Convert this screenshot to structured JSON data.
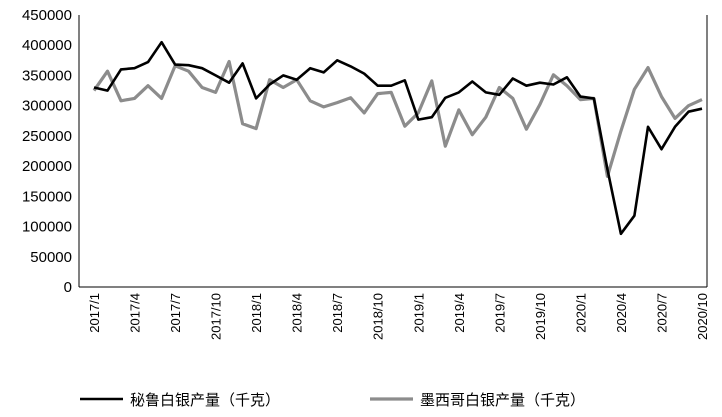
{
  "chart_data": {
    "type": "line",
    "title": "",
    "xlabel": "",
    "ylabel": "",
    "ylim": [
      0,
      450000
    ],
    "yticks": [
      0,
      50000,
      100000,
      150000,
      200000,
      250000,
      300000,
      350000,
      400000,
      450000
    ],
    "x": [
      "2017/1",
      "2017/2",
      "2017/3",
      "2017/4",
      "2017/5",
      "2017/6",
      "2017/7",
      "2017/8",
      "2017/9",
      "2017/10",
      "2017/11",
      "2017/12",
      "2018/1",
      "2018/2",
      "2018/3",
      "2018/4",
      "2018/5",
      "2018/6",
      "2018/7",
      "2018/8",
      "2018/9",
      "2018/10",
      "2018/11",
      "2018/12",
      "2019/1",
      "2019/2",
      "2019/3",
      "2019/4",
      "2019/5",
      "2019/6",
      "2019/7",
      "2019/8",
      "2019/9",
      "2019/10",
      "2019/11",
      "2019/12",
      "2020/1",
      "2020/2",
      "2020/3",
      "2020/4",
      "2020/5",
      "2020/6",
      "2020/7",
      "2020/8",
      "2020/9",
      "2020/10"
    ],
    "xtick_labels": [
      "2017/1",
      "2017/4",
      "2017/7",
      "2017/10",
      "2018/1",
      "2018/4",
      "2018/7",
      "2018/10",
      "2019/1",
      "2019/4",
      "2019/7",
      "2019/10",
      "2020/1",
      "2020/4",
      "2020/7",
      "2020/10"
    ],
    "grid": false,
    "legend_position": "bottom",
    "series": [
      {
        "name": "秘鲁白银产量（千克）",
        "color": "#000000",
        "values": [
          330000,
          325000,
          360000,
          362000,
          372000,
          405000,
          368000,
          367000,
          362000,
          350000,
          338000,
          370000,
          312000,
          335000,
          350000,
          343000,
          362000,
          355000,
          375000,
          365000,
          353000,
          333000,
          333000,
          342000,
          277000,
          281000,
          313000,
          322000,
          340000,
          322000,
          318000,
          345000,
          333000,
          338000,
          335000,
          347000,
          315000,
          312000,
          195000,
          88000,
          118000,
          265000,
          228000,
          265000,
          290000,
          295000
        ]
      },
      {
        "name": "墨西哥白银产量（千克）",
        "color": "#8c8c8c",
        "values": [
          325000,
          357000,
          308000,
          312000,
          333000,
          312000,
          366000,
          357000,
          330000,
          322000,
          373000,
          270000,
          262000,
          343000,
          330000,
          343000,
          308000,
          298000,
          305000,
          313000,
          288000,
          320000,
          322000,
          266000,
          288000,
          341000,
          233000,
          293000,
          252000,
          281000,
          330000,
          312000,
          261000,
          302000,
          351000,
          333000,
          310000,
          312000,
          183000,
          258000,
          327000,
          363000,
          315000,
          279000,
          300000,
          310000
        ]
      }
    ]
  }
}
